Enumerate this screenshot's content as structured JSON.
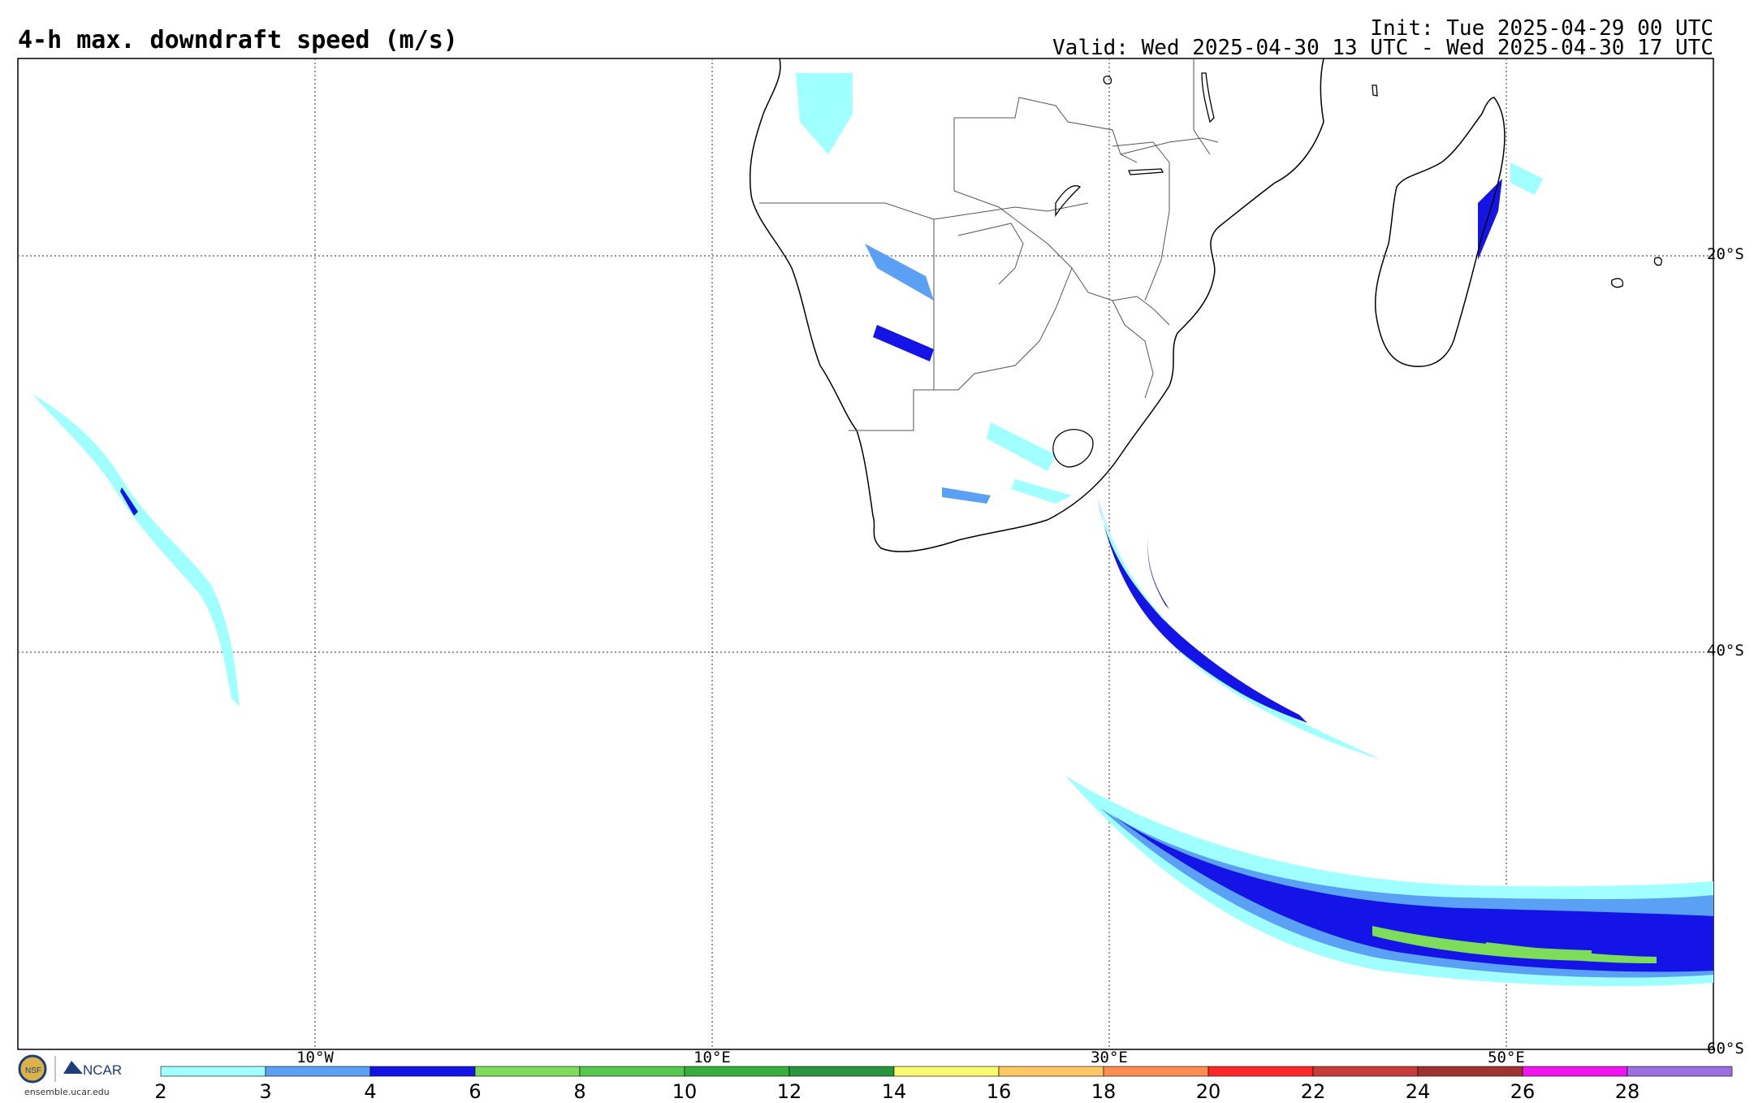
{
  "header": {
    "title": "4-h max. downdraft speed (m/s)",
    "init": "Init: Tue 2025-04-29 00 UTC",
    "valid": "Valid: Wed 2025-04-30 13 UTC - Wed 2025-04-30 17 UTC"
  },
  "map": {
    "lat_labels": [
      "20°S",
      "40°S",
      "60°S"
    ],
    "lon_labels": [
      "10°W",
      "10°E",
      "30°E",
      "50°E"
    ],
    "gridlines": "dotted",
    "region": "Southern Africa, South Atlantic and Southwest Indian Ocean"
  },
  "colorbar": {
    "ticks": [
      "2",
      "3",
      "4",
      "6",
      "8",
      "10",
      "12",
      "14",
      "16",
      "18",
      "20",
      "22",
      "24",
      "26",
      "28"
    ],
    "colors": [
      "#a0ffff",
      "#5aa0f5",
      "#1414e6",
      "#7ddc5a",
      "#55c850",
      "#37af3c",
      "#28963c",
      "#fafa6e",
      "#ffc864",
      "#ff8c50",
      "#ff2828",
      "#c83c3c",
      "#a03232",
      "#f014f0",
      "#9b6ee1"
    ]
  },
  "logo": {
    "org": "NCAR",
    "seal": "NSF",
    "url": "ensemble.ucar.edu"
  },
  "colors": {
    "very_light": "#a0ffff",
    "light": "#5aa0f5",
    "mid": "#1414e6",
    "green": "#7ddc5a"
  }
}
